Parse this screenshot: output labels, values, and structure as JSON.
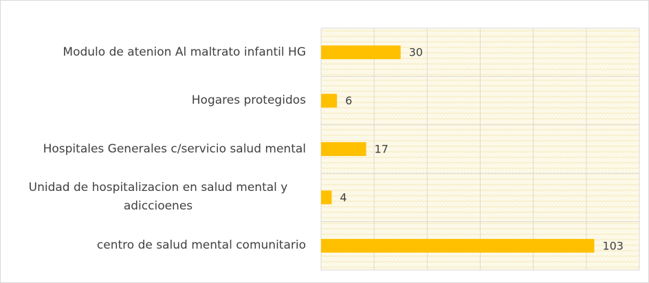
{
  "chart_data": {
    "type": "bar",
    "orientation": "horizontal",
    "categories": [
      "Modulo de atenion Al maltrato infantil HG",
      "Hogares protegidos",
      "Hospitales Generales c/servicio salud mental",
      "Unidad de hospitalizacion en salud mental y adiccioenes",
      "centro de salud mental comunitario"
    ],
    "values": [
      30,
      6,
      17,
      4,
      103
    ],
    "color": "#ffc000",
    "xlim": [
      0,
      120
    ],
    "xticks": [
      0,
      20,
      40,
      60,
      80,
      100,
      120
    ],
    "grid": true
  }
}
